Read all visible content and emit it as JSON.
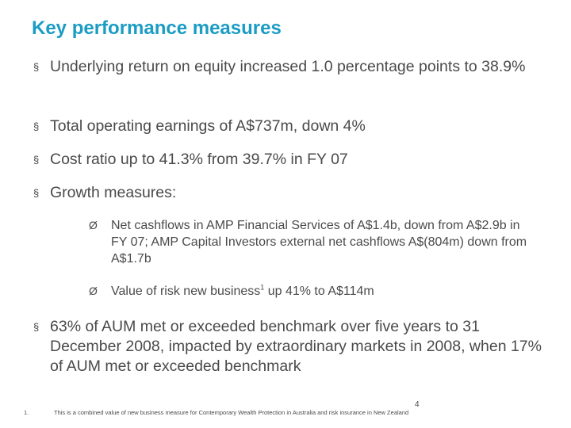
{
  "slide": {
    "title": "Key performance measures",
    "bullet_glyph": "§",
    "sub_bullet_glyph": "Ø",
    "bullets": [
      {
        "text": "Underlying return on equity increased 1.0 percentage points to 38.9%"
      },
      {
        "text": "Total operating earnings of A$737m, down 4%"
      },
      {
        "text": "Cost ratio up to 41.3% from 39.7% in FY 07"
      },
      {
        "text": "Growth measures:"
      },
      {
        "text": "63% of AUM met or exceeded benchmark over five years to 31 December 2008, impacted by extraordinary markets in 2008, when 17% of AUM met or exceeded benchmark"
      }
    ],
    "sub_bullets": [
      {
        "text": "Net cashflows in AMP Financial Services of A$1.4b, down from A$2.9b in FY 07; AMP Capital Investors external net cashflows A$(804m) down from A$1.7b"
      },
      {
        "text_before": "Value of risk new business",
        "footnote_ref": "1",
        "text_after": " up 41% to A$114m"
      }
    ],
    "page_number": "4",
    "footnote": {
      "number": "1.",
      "text": "This is a combined value of new business measure for Contemporary Wealth Protection in Australia and risk insurance in New Zealand"
    }
  }
}
